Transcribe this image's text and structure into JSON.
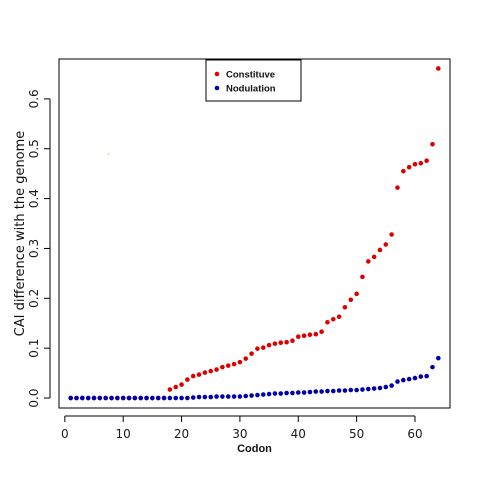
{
  "chart_data": {
    "type": "scatter",
    "title": "",
    "xlabel": "Codon",
    "ylabel": "CAI difference with the genome",
    "xlim": [
      -1,
      66
    ],
    "ylim": [
      -0.02,
      0.68
    ],
    "x_ticks": [
      0,
      10,
      20,
      30,
      40,
      50,
      60
    ],
    "y_ticks": [
      0.0,
      0.1,
      0.2,
      0.3,
      0.4,
      0.5,
      0.6
    ],
    "y_tick_labels": [
      "0.0",
      "0.1",
      "0.2",
      "0.3",
      "0.4",
      "0.5",
      "0.6"
    ],
    "grid": false,
    "legend_position": "top-center",
    "series": [
      {
        "name": "Constituve",
        "color": "#dd0000",
        "x": [
          1,
          2,
          3,
          4,
          5,
          6,
          7,
          8,
          9,
          10,
          11,
          12,
          13,
          14,
          15,
          16,
          17,
          18,
          19,
          20,
          21,
          22,
          23,
          24,
          25,
          26,
          27,
          28,
          29,
          30,
          31,
          32,
          33,
          34,
          35,
          36,
          37,
          38,
          39,
          40,
          41,
          42,
          43,
          44,
          45,
          46,
          47,
          48,
          49,
          50,
          51,
          52,
          53,
          54,
          55,
          56,
          57,
          58,
          59,
          60,
          61,
          62,
          63,
          64
        ],
        "values": [
          0,
          0,
          0,
          0,
          0,
          0,
          0,
          0,
          0,
          0,
          0,
          0,
          0,
          0,
          0,
          0,
          0,
          0.017,
          0.022,
          0.027,
          0.037,
          0.044,
          0.047,
          0.051,
          0.054,
          0.057,
          0.062,
          0.065,
          0.068,
          0.072,
          0.079,
          0.089,
          0.099,
          0.101,
          0.106,
          0.109,
          0.111,
          0.112,
          0.115,
          0.123,
          0.125,
          0.127,
          0.128,
          0.133,
          0.152,
          0.158,
          0.163,
          0.182,
          0.197,
          0.209,
          0.243,
          0.274,
          0.283,
          0.297,
          0.308,
          0.328,
          0.422,
          0.455,
          0.463,
          0.469,
          0.471,
          0.476,
          0.509,
          0.661
        ]
      },
      {
        "name": "Nodulation",
        "color": "#0000aa",
        "x": [
          1,
          2,
          3,
          4,
          5,
          6,
          7,
          8,
          9,
          10,
          11,
          12,
          13,
          14,
          15,
          16,
          17,
          18,
          19,
          20,
          21,
          22,
          23,
          24,
          25,
          26,
          27,
          28,
          29,
          30,
          31,
          32,
          33,
          34,
          35,
          36,
          37,
          38,
          39,
          40,
          41,
          42,
          43,
          44,
          45,
          46,
          47,
          48,
          49,
          50,
          51,
          52,
          53,
          54,
          55,
          56,
          57,
          58,
          59,
          60,
          61,
          62,
          63,
          64
        ],
        "values": [
          0,
          0,
          0,
          0,
          0,
          0,
          0,
          0,
          0,
          0,
          0,
          0,
          0,
          0,
          0,
          0,
          0,
          0,
          0,
          0,
          0,
          0.001,
          0.002,
          0.002,
          0.002,
          0.003,
          0.003,
          0.003,
          0.003,
          0.003,
          0.004,
          0.005,
          0.006,
          0.007,
          0.008,
          0.009,
          0.009,
          0.01,
          0.01,
          0.011,
          0.011,
          0.012,
          0.013,
          0.013,
          0.014,
          0.014,
          0.015,
          0.015,
          0.016,
          0.016,
          0.017,
          0.018,
          0.019,
          0.02,
          0.022,
          0.025,
          0.033,
          0.036,
          0.038,
          0.04,
          0.043,
          0.044,
          0.062,
          0.08
        ]
      }
    ],
    "stray_mark": {
      "x": 7.5,
      "y": 0.49,
      "color": "#d8e8b0"
    }
  }
}
